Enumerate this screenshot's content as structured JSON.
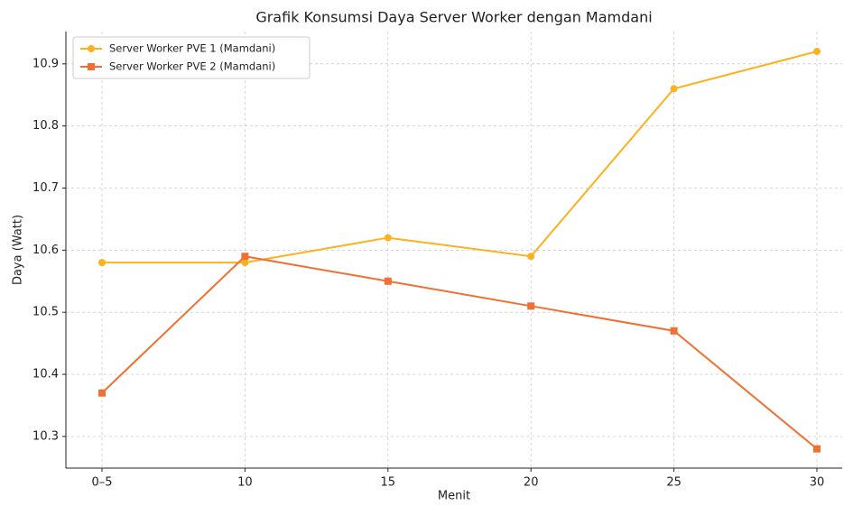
{
  "chart_data": {
    "type": "line",
    "title": "Grafik Konsumsi Daya Server Worker dengan Mamdani",
    "xlabel": "Menit",
    "ylabel": "Daya (Watt)",
    "categories": [
      "0–5",
      "10",
      "15",
      "20",
      "25",
      "30"
    ],
    "series": [
      {
        "name": "Server Worker PVE 1 (Mamdani)",
        "color": "#fbb21e",
        "marker": "circle",
        "values": [
          10.58,
          10.58,
          10.62,
          10.59,
          10.86,
          10.92
        ]
      },
      {
        "name": "Server Worker PVE 2 (Mamdani)",
        "color": "#f07031",
        "marker": "square",
        "values": [
          10.37,
          10.59,
          10.55,
          10.51,
          10.47,
          10.28
        ]
      }
    ],
    "ylim": [
      10.249,
      10.952
    ],
    "yticks": [
      10.3,
      10.4,
      10.5,
      10.6,
      10.7,
      10.8,
      10.9
    ],
    "grid": true,
    "legend": "upper left"
  }
}
